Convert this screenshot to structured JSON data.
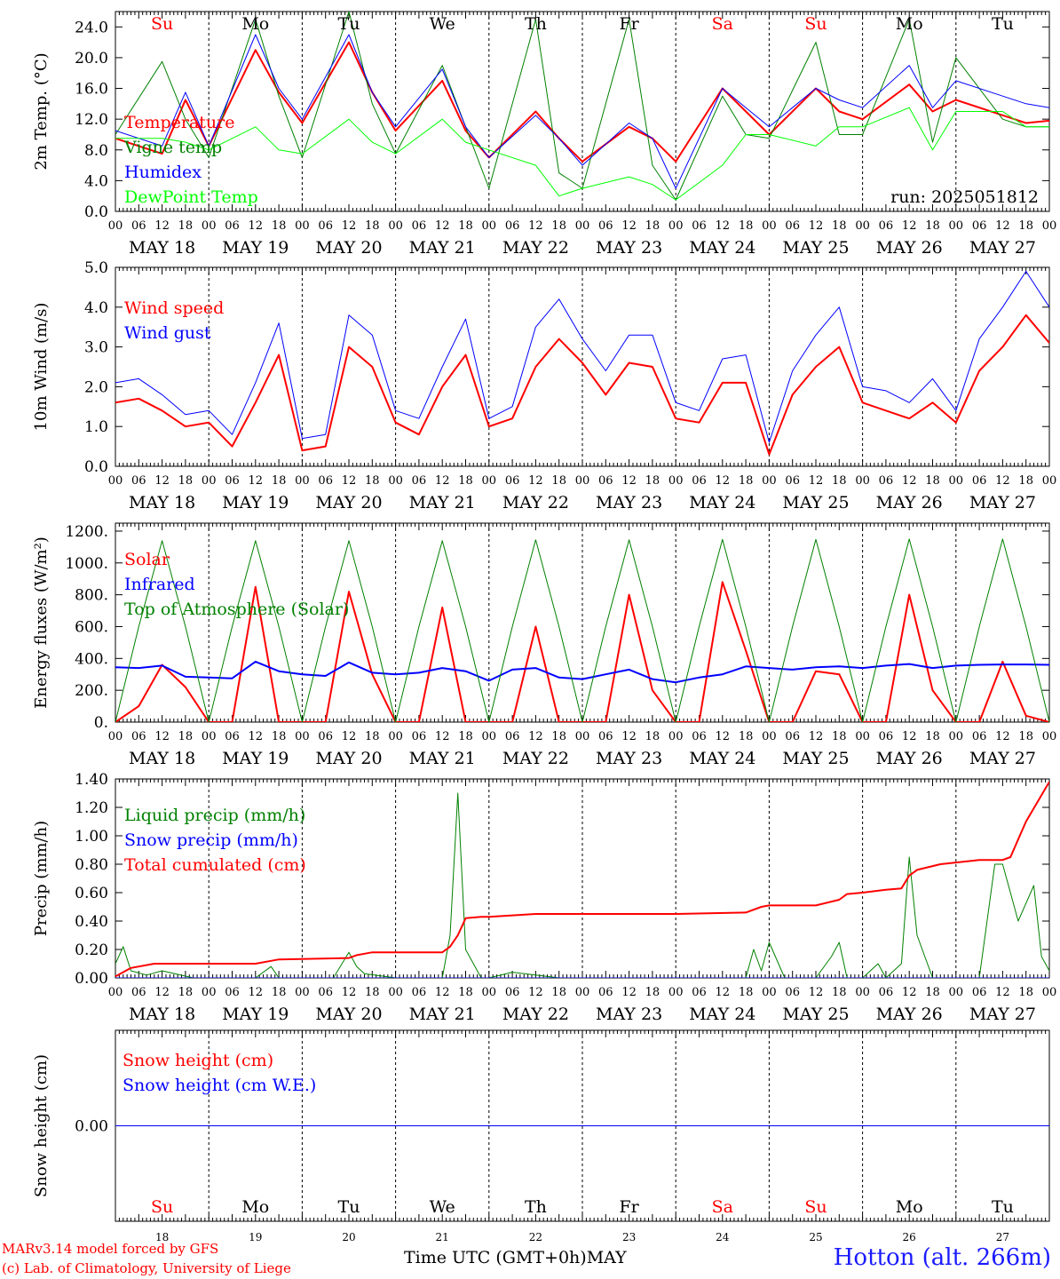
{
  "meteogram": {
    "run_label": "run: 2025051812",
    "x_axis_label": "Time UTC (GMT+0h)",
    "x_axis_month": "MAY",
    "site_label": "Hotton (alt. 266m)",
    "credit_line1": "MARv3.14 model forced by GFS",
    "credit_line2": "(c) Lab. of Climatology, University of Liege",
    "hour_ticks": [
      "00",
      "06",
      "12",
      "18"
    ],
    "end_tick": "00",
    "days": [
      {
        "weekday": "Su",
        "date": "MAY 18",
        "num": "18",
        "weekend": true
      },
      {
        "weekday": "Mo",
        "date": "MAY 19",
        "num": "19",
        "weekend": false
      },
      {
        "weekday": "Tu",
        "date": "MAY 20",
        "num": "20",
        "weekend": false
      },
      {
        "weekday": "We",
        "date": "MAY 21",
        "num": "21",
        "weekend": false
      },
      {
        "weekday": "Th",
        "date": "MAY 22",
        "num": "22",
        "weekend": false
      },
      {
        "weekday": "Fr",
        "date": "MAY 23",
        "num": "23",
        "weekend": false
      },
      {
        "weekday": "Sa",
        "date": "MAY 24",
        "num": "24",
        "weekend": true
      },
      {
        "weekday": "Su",
        "date": "MAY 25",
        "num": "25",
        "weekend": true
      },
      {
        "weekday": "Mo",
        "date": "MAY 26",
        "num": "26",
        "weekend": false
      },
      {
        "weekday": "Tu",
        "date": "MAY 27",
        "num": "27",
        "weekend": false
      }
    ]
  },
  "chart_data": [
    {
      "type": "line",
      "ylabel": "2m Temp. (°C)",
      "ylim": [
        0,
        26
      ],
      "yticks": [
        "0.0",
        "4.0",
        "8.0",
        "12.0",
        "16.0",
        "20.0",
        "24.0"
      ],
      "ytick_values": [
        0,
        4,
        8,
        12,
        16,
        20,
        24
      ],
      "x": [
        0,
        12,
        18,
        24,
        36,
        42,
        48,
        60,
        66,
        72,
        84,
        90,
        96,
        108,
        114,
        120,
        132,
        138,
        144,
        156,
        162,
        168,
        180,
        186,
        192,
        204,
        210,
        216,
        228,
        234,
        240
      ],
      "series": [
        {
          "name": "Temperature",
          "color": "#ff0000",
          "width": 2,
          "values": [
            9.5,
            7.5,
            14.5,
            8.5,
            21,
            15.5,
            11.5,
            22,
            15.5,
            10.5,
            17,
            10.5,
            7,
            13,
            9.5,
            6.5,
            11,
            9.5,
            6.5,
            16,
            13,
            10,
            16,
            13,
            12,
            16.5,
            13,
            14.5,
            12.5,
            11.5,
            11.8
          ]
        },
        {
          "name": "Vigne temp",
          "color": "#008000",
          "width": 1,
          "values": [
            10,
            19.5,
            12,
            7,
            25,
            15,
            7,
            26,
            14,
            7.5,
            19,
            11,
            3,
            25,
            5,
            3,
            25,
            6,
            1.5,
            15,
            10,
            9.5,
            22,
            10,
            10,
            25,
            9,
            20,
            12,
            11,
            11
          ]
        },
        {
          "name": "Humidex",
          "color": "#0000ff",
          "width": 1,
          "values": [
            10.5,
            8.5,
            15.5,
            8.5,
            23,
            16,
            12,
            23,
            15.5,
            11,
            18.5,
            11,
            7,
            12.5,
            9.5,
            6,
            11.5,
            9.5,
            3,
            16,
            13.5,
            11,
            16,
            14.5,
            13.5,
            19,
            13.5,
            17,
            15,
            14,
            13.5
          ]
        },
        {
          "name": "DewPoint Temp",
          "color": "#00ff00",
          "width": 1,
          "values": [
            9.5,
            9.5,
            9,
            8,
            11,
            8,
            7.5,
            12,
            9,
            7.5,
            12,
            9,
            8,
            6,
            2,
            3,
            4.5,
            3.5,
            1.5,
            6,
            10,
            10,
            8.5,
            11,
            11,
            13.5,
            8,
            13,
            13,
            11,
            11
          ]
        }
      ]
    },
    {
      "type": "line",
      "ylabel": "10m Wind (m/s)",
      "ylim": [
        0,
        5
      ],
      "yticks": [
        "0.0",
        "1.0",
        "2.0",
        "3.0",
        "4.0",
        "5.0"
      ],
      "ytick_values": [
        0,
        1,
        2,
        3,
        4,
        5
      ],
      "x": [
        0,
        6,
        12,
        18,
        24,
        30,
        36,
        42,
        48,
        54,
        60,
        66,
        72,
        78,
        84,
        90,
        96,
        102,
        108,
        114,
        120,
        126,
        132,
        138,
        144,
        150,
        156,
        162,
        168,
        174,
        180,
        186,
        192,
        198,
        204,
        210,
        216,
        222,
        228,
        234,
        240
      ],
      "series": [
        {
          "name": "Wind speed",
          "color": "#ff0000",
          "width": 2,
          "values": [
            1.6,
            1.7,
            1.4,
            1.0,
            1.1,
            0.5,
            1.6,
            2.8,
            0.4,
            0.5,
            3.0,
            2.5,
            1.1,
            0.8,
            2.0,
            2.8,
            1.0,
            1.2,
            2.5,
            3.2,
            2.6,
            1.8,
            2.6,
            2.5,
            1.2,
            1.1,
            2.1,
            2.1,
            0.3,
            1.8,
            2.5,
            3.0,
            1.6,
            1.4,
            1.2,
            1.6,
            1.1,
            2.4,
            3.0,
            3.8,
            3.1
          ]
        },
        {
          "name": "Wind gust",
          "color": "#0000ff",
          "width": 1,
          "values": [
            2.1,
            2.2,
            1.8,
            1.3,
            1.4,
            0.8,
            2.1,
            3.6,
            0.7,
            0.8,
            3.8,
            3.3,
            1.4,
            1.2,
            2.5,
            3.7,
            1.2,
            1.5,
            3.5,
            4.2,
            3.2,
            2.4,
            3.3,
            3.3,
            1.6,
            1.4,
            2.7,
            2.8,
            0.6,
            2.4,
            3.3,
            4.0,
            2.0,
            1.9,
            1.6,
            2.2,
            1.4,
            3.2,
            4.0,
            4.9,
            4.0
          ]
        }
      ]
    },
    {
      "type": "line",
      "ylabel": "Energy fluxes (W/m²)",
      "ylim": [
        0,
        1250
      ],
      "yticks": [
        "0.",
        "200.",
        "400.",
        "600.",
        "800.",
        "1000.",
        "1200."
      ],
      "ytick_values": [
        0,
        200,
        400,
        600,
        800,
        1000,
        1200
      ],
      "x": [
        0,
        6,
        12,
        18,
        24,
        30,
        36,
        42,
        48,
        54,
        60,
        66,
        72,
        78,
        84,
        90,
        96,
        102,
        108,
        114,
        120,
        126,
        132,
        138,
        144,
        150,
        156,
        162,
        168,
        174,
        180,
        186,
        192,
        198,
        204,
        210,
        216,
        222,
        228,
        234,
        240
      ],
      "series": [
        {
          "name": "Solar",
          "color": "#ff0000",
          "width": 2,
          "values": [
            0,
            100,
            360,
            220,
            0,
            0,
            850,
            0,
            0,
            0,
            820,
            300,
            0,
            0,
            720,
            0,
            0,
            0,
            600,
            0,
            0,
            0,
            800,
            200,
            0,
            0,
            880,
            450,
            0,
            0,
            320,
            300,
            0,
            0,
            800,
            200,
            0,
            0,
            380,
            40,
            0
          ]
        },
        {
          "name": "Infrared",
          "color": "#0000ff",
          "width": 2,
          "values": [
            345,
            340,
            355,
            285,
            280,
            275,
            380,
            320,
            300,
            290,
            375,
            310,
            300,
            310,
            340,
            320,
            260,
            330,
            340,
            280,
            270,
            300,
            330,
            270,
            250,
            280,
            300,
            350,
            340,
            330,
            345,
            350,
            340,
            355,
            365,
            340,
            355,
            360,
            362,
            362,
            360
          ]
        },
        {
          "name": "Top of Atmosphere (Solar)",
          "color": "#008000",
          "width": 1,
          "values": [
            0,
            600,
            1140,
            600,
            0,
            600,
            1140,
            600,
            0,
            600,
            1140,
            600,
            0,
            600,
            1140,
            600,
            0,
            600,
            1145,
            600,
            0,
            600,
            1145,
            600,
            0,
            600,
            1148,
            600,
            0,
            600,
            1148,
            600,
            0,
            600,
            1150,
            600,
            0,
            600,
            1150,
            600,
            0
          ]
        }
      ]
    },
    {
      "type": "line",
      "ylabel": "Precip (mm/h)",
      "ylim": [
        0,
        1.4
      ],
      "yticks": [
        "0.00",
        "0.20",
        "0.40",
        "0.60",
        "0.80",
        "1.00",
        "1.20",
        "1.40"
      ],
      "ytick_values": [
        0,
        0.2,
        0.4,
        0.6,
        0.8,
        1.0,
        1.2,
        1.4
      ],
      "series": [
        {
          "name": "Liquid precip (mm/h)",
          "color": "#008000",
          "width": 1,
          "x": [
            0,
            2,
            4,
            8,
            12,
            20,
            36,
            40,
            42,
            48,
            56,
            60,
            62,
            64,
            72,
            84,
            86,
            88,
            90,
            94,
            96,
            102,
            108,
            114,
            144,
            162,
            164,
            166,
            168,
            172,
            178,
            180,
            184,
            186,
            188,
            190,
            192,
            196,
            198,
            202,
            204,
            206,
            210,
            216,
            222,
            226,
            228,
            232,
            236,
            238,
            240
          ],
          "values": [
            0.1,
            0.22,
            0.05,
            0.02,
            0.05,
            0,
            0,
            0.08,
            0,
            0,
            0,
            0.18,
            0.08,
            0.03,
            0,
            0,
            0.3,
            1.3,
            0.2,
            0,
            0,
            0.04,
            0.02,
            0,
            0,
            0,
            0.2,
            0.05,
            0.25,
            0,
            0,
            0,
            0.15,
            0.25,
            0,
            0,
            0,
            0.1,
            0,
            0.1,
            0.85,
            0.3,
            0,
            0,
            0,
            0.8,
            0.8,
            0.4,
            0.65,
            0.15,
            0.05
          ]
        },
        {
          "name": "Snow precip (mm/h)",
          "color": "#0000ff",
          "width": 1,
          "x": [
            0,
            240
          ],
          "values": [
            0,
            0
          ]
        },
        {
          "name": "Total cumulated (cm)",
          "color": "#ff0000",
          "width": 2,
          "x": [
            0,
            4,
            10,
            14,
            36,
            40,
            42,
            60,
            62,
            64,
            66,
            84,
            86,
            88,
            90,
            94,
            96,
            102,
            108,
            114,
            144,
            162,
            166,
            168,
            172,
            180,
            186,
            188,
            192,
            198,
            202,
            204,
            206,
            212,
            222,
            228,
            230,
            234,
            240
          ],
          "values": [
            0.01,
            0.07,
            0.1,
            0.1,
            0.1,
            0.12,
            0.13,
            0.14,
            0.16,
            0.17,
            0.18,
            0.18,
            0.22,
            0.3,
            0.42,
            0.43,
            0.43,
            0.44,
            0.45,
            0.45,
            0.45,
            0.46,
            0.5,
            0.51,
            0.51,
            0.51,
            0.55,
            0.59,
            0.6,
            0.62,
            0.63,
            0.72,
            0.76,
            0.8,
            0.83,
            0.83,
            0.85,
            1.1,
            1.38
          ]
        }
      ]
    },
    {
      "type": "line",
      "ylabel": "Snow height (cm)",
      "ylim": [
        -1,
        1
      ],
      "yticks": [
        "0.00"
      ],
      "ytick_values": [
        0
      ],
      "x": [
        0,
        240
      ],
      "series": [
        {
          "name": "Snow height (cm)",
          "color": "#ff0000",
          "width": 1,
          "values": [
            0,
            0
          ]
        },
        {
          "name": "Snow height (cm W.E.)",
          "color": "#0000ff",
          "width": 1,
          "values": [
            0,
            0
          ]
        }
      ]
    }
  ]
}
